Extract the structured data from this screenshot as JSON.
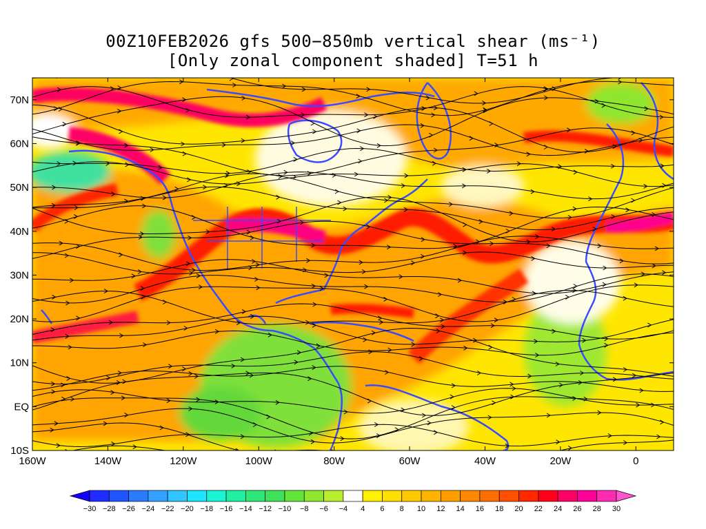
{
  "title": {
    "line1": "00Z10FEB2026 gfs 500−850mb vertical shear (ms⁻¹)",
    "line2": "[Only zonal component shaded] T=51 h"
  },
  "map": {
    "lon_range": [
      -160,
      10
    ],
    "lat_range": [
      -10,
      75
    ],
    "lon_ticks": [
      {
        "value": -160,
        "label": "160W"
      },
      {
        "value": -140,
        "label": "140W"
      },
      {
        "value": -120,
        "label": "120W"
      },
      {
        "value": -100,
        "label": "100W"
      },
      {
        "value": -80,
        "label": "80W"
      },
      {
        "value": -60,
        "label": "60W"
      },
      {
        "value": -40,
        "label": "40W"
      },
      {
        "value": -20,
        "label": "20W"
      },
      {
        "value": 0,
        "label": "0"
      }
    ],
    "lat_ticks": [
      {
        "value": -10,
        "label": "10S"
      },
      {
        "value": 0,
        "label": "EQ"
      },
      {
        "value": 10,
        "label": "10N"
      },
      {
        "value": 20,
        "label": "20N"
      },
      {
        "value": 30,
        "label": "30N"
      },
      {
        "value": 40,
        "label": "40N"
      },
      {
        "value": 50,
        "label": "50N"
      },
      {
        "value": 60,
        "label": "60N"
      },
      {
        "value": 70,
        "label": "70N"
      }
    ],
    "coastline_color": "#3a4bff",
    "streamline_color": "#000000"
  },
  "colorbar": {
    "labels": [
      "-30",
      "-28",
      "-26",
      "-24",
      "-22",
      "-20",
      "-18",
      "-16",
      "-14",
      "-12",
      "-10",
      "-8",
      "-6",
      "-4",
      "4",
      "6",
      "8",
      "10",
      "12",
      "14",
      "16",
      "18",
      "20",
      "22",
      "24",
      "26",
      "28",
      "30"
    ],
    "colors": [
      "#1f2bff",
      "#2155ff",
      "#2a7bff",
      "#35a0ff",
      "#30c6ff",
      "#1ee6ff",
      "#19f5d2",
      "#21f0a0",
      "#2fe87a",
      "#3fe25a",
      "#63e63a",
      "#8fe62f",
      "#b9ee2f",
      "#ffffff",
      "#fff200",
      "#ffdf00",
      "#ffc800",
      "#ffb400",
      "#ff9e00",
      "#ff8800",
      "#ff6e00",
      "#ff5000",
      "#ff2800",
      "#ff0018",
      "#ff0066",
      "#ff0099",
      "#ff2ab4"
    ],
    "end_low_color": "#1200ff",
    "end_high_color": "#ff55d0"
  }
}
